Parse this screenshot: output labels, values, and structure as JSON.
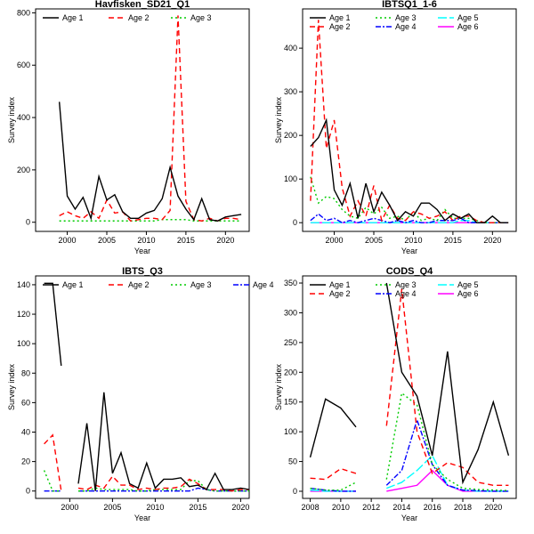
{
  "colors": {
    "Age 1": "#000000",
    "Age 2": "#ff0000",
    "Age 3": "#00cc00",
    "Age 4": "#0000ff",
    "Age 5": "#00ffff",
    "Age 6": "#ff00ff"
  },
  "chart_data": [
    {
      "type": "line",
      "title": "Havfisken_SD21_Q1",
      "xlabel": "Year",
      "ylabel": "Survey index",
      "xlim": [
        1996,
        2023
      ],
      "ylim": [
        -35,
        815
      ],
      "xticks": [
        2000,
        2005,
        2010,
        2015,
        2020
      ],
      "yticks": [
        0,
        200,
        400,
        600,
        800
      ],
      "legend_position": "top",
      "series": [
        {
          "name": "Age 1",
          "x": [
            1999,
            2000,
            2001,
            2002,
            2003,
            2004,
            2005,
            2006,
            2007,
            2008,
            2009,
            2010,
            2011,
            2012,
            2013,
            2014,
            2015,
            2016,
            2017,
            2018,
            2019,
            2020,
            2021,
            2022
          ],
          "y": [
            460,
            100,
            50,
            95,
            15,
            175,
            85,
            105,
            40,
            15,
            15,
            35,
            45,
            90,
            210,
            100,
            50,
            10,
            90,
            10,
            5,
            20,
            25,
            30
          ]
        },
        {
          "name": "Age 2",
          "x": [
            1999,
            2000,
            2001,
            2002,
            2003,
            2004,
            2005,
            2006,
            2007,
            2008,
            2009,
            2010,
            2011,
            2012,
            2013,
            2014,
            2015,
            2016,
            2017,
            2018,
            2019,
            2020,
            2021,
            2022
          ],
          "y": [
            25,
            40,
            25,
            15,
            40,
            15,
            85,
            35,
            40,
            5,
            10,
            15,
            15,
            10,
            45,
            790,
            80,
            10,
            5,
            15,
            5,
            15,
            15,
            10
          ]
        },
        {
          "name": "Age 3",
          "x": [
            1999,
            2000,
            2001,
            2002,
            2003,
            2004,
            2005,
            2006,
            2007,
            2008,
            2009,
            2010,
            2011,
            2012,
            2013,
            2014,
            2015,
            2016,
            2017,
            2018,
            2019,
            2020,
            2021,
            2022
          ],
          "y": [
            5,
            5,
            5,
            5,
            5,
            5,
            5,
            5,
            5,
            5,
            5,
            5,
            5,
            10,
            10,
            10,
            10,
            5,
            5,
            5,
            5,
            5,
            5,
            5
          ]
        }
      ]
    },
    {
      "type": "line",
      "title": "IBTSQ1_1-6",
      "xlabel": "Year",
      "ylabel": "Survey index",
      "xlim": [
        1996,
        2023
      ],
      "ylim": [
        -20,
        490
      ],
      "xticks": [
        2000,
        2005,
        2010,
        2015,
        2020
      ],
      "yticks": [
        0,
        100,
        200,
        300,
        400
      ],
      "legend_position": "top",
      "series": [
        {
          "name": "Age 1",
          "x": [
            1997,
            1998,
            1999,
            2000,
            2001,
            2002,
            2003,
            2004,
            2005,
            2006,
            2007,
            2008,
            2009,
            2010,
            2011,
            2012,
            2013,
            2014,
            2015,
            2016,
            2017,
            2018,
            2019,
            2020,
            2021,
            2022
          ],
          "y": [
            175,
            195,
            235,
            75,
            40,
            90,
            10,
            90,
            25,
            70,
            40,
            5,
            25,
            15,
            45,
            45,
            30,
            5,
            20,
            10,
            20,
            0,
            0,
            15,
            0,
            0
          ]
        },
        {
          "name": "Age 2",
          "x": [
            1997,
            1998,
            1999,
            2000,
            2001,
            2002,
            2003,
            2004,
            2005,
            2006,
            2007,
            2008,
            2009,
            2010,
            2011,
            2012,
            2013,
            2014,
            2015,
            2016,
            2017,
            2018,
            2019,
            2020,
            2021,
            2022
          ],
          "y": [
            50,
            465,
            170,
            235,
            80,
            15,
            50,
            15,
            85,
            5,
            40,
            10,
            5,
            25,
            20,
            10,
            15,
            25,
            5,
            15,
            15,
            5,
            0,
            0,
            0,
            0
          ]
        },
        {
          "name": "Age 3",
          "x": [
            1997,
            1998,
            1999,
            2000,
            2001,
            2002,
            2003,
            2004,
            2005,
            2006,
            2007,
            2008,
            2009,
            2010,
            2011,
            2012,
            2013,
            2014,
            2015,
            2016,
            2017,
            2018,
            2019,
            2020,
            2021,
            2022
          ],
          "y": [
            105,
            45,
            60,
            55,
            30,
            15,
            10,
            35,
            20,
            35,
            10,
            15,
            5,
            25,
            5,
            10,
            5,
            30,
            10,
            10,
            10,
            5,
            0,
            0,
            0,
            0
          ]
        },
        {
          "name": "Age 4",
          "x": [
            1997,
            1998,
            1999,
            2000,
            2001,
            2002,
            2003,
            2004,
            2005,
            2006,
            2007,
            2008,
            2009,
            2010,
            2011,
            2012,
            2013,
            2014,
            2015,
            2016,
            2017,
            2018,
            2019,
            2020,
            2021,
            2022
          ],
          "y": [
            5,
            20,
            5,
            10,
            0,
            5,
            0,
            5,
            10,
            5,
            0,
            5,
            0,
            5,
            0,
            0,
            5,
            5,
            5,
            10,
            0,
            0,
            0,
            0,
            0,
            0
          ]
        },
        {
          "name": "Age 5",
          "x": [
            1997,
            1998,
            1999,
            2000,
            2001,
            2002,
            2003,
            2004,
            2005,
            2006,
            2007,
            2008,
            2009,
            2010,
            2011,
            2012,
            2013,
            2014,
            2015,
            2016,
            2017,
            2018,
            2019,
            2020,
            2021,
            2022
          ],
          "y": [
            0,
            0,
            0,
            0,
            0,
            0,
            0,
            0,
            0,
            0,
            0,
            0,
            0,
            0,
            0,
            0,
            0,
            0,
            0,
            5,
            5,
            0,
            0,
            0,
            0,
            0
          ]
        },
        {
          "name": "Age 6",
          "x": [
            1997,
            1998,
            1999,
            2000,
            2001,
            2002,
            2003,
            2004,
            2005,
            2006,
            2007,
            2008,
            2009,
            2010,
            2011,
            2012,
            2013,
            2014,
            2015,
            2016,
            2017,
            2018,
            2019,
            2020,
            2021,
            2022
          ],
          "y": [
            0,
            0,
            0,
            0,
            0,
            0,
            0,
            0,
            0,
            0,
            0,
            0,
            0,
            0,
            0,
            0,
            0,
            0,
            0,
            0,
            0,
            0,
            0,
            0,
            0,
            0
          ]
        }
      ]
    },
    {
      "type": "line",
      "title": "IBTS_Q3",
      "xlabel": "Year",
      "ylabel": "Survey index",
      "xlim": [
        1996,
        2021
      ],
      "ylim": [
        -5,
        146
      ],
      "xticks": [
        2000,
        2005,
        2010,
        2015,
        2020
      ],
      "yticks": [
        0,
        20,
        40,
        60,
        80,
        100,
        120,
        140
      ],
      "legend_position": "top",
      "series": [
        {
          "name": "Age 1",
          "x": [
            1997,
            1998,
            1999,
            2000,
            2001,
            2002,
            2003,
            2004,
            2005,
            2006,
            2007,
            2008,
            2009,
            2010,
            2011,
            2012,
            2013,
            2014,
            2015,
            2016,
            2017,
            2018,
            2019,
            2020,
            2021
          ],
          "y": [
            141,
            141,
            85,
            null,
            5,
            46,
            0,
            67,
            12,
            26,
            5,
            2,
            19,
            2,
            8,
            8,
            9,
            3,
            4,
            1,
            12,
            1,
            1,
            2,
            1
          ]
        },
        {
          "name": "Age 2",
          "x": [
            1997,
            1998,
            1999,
            2000,
            2001,
            2002,
            2003,
            2004,
            2005,
            2006,
            2007,
            2008,
            2009,
            2010,
            2011,
            2012,
            2013,
            2014,
            2015,
            2016,
            2017,
            2018,
            2019,
            2020,
            2021
          ],
          "y": [
            32,
            38,
            0,
            null,
            2,
            1,
            4,
            2,
            10,
            4,
            4,
            1,
            2,
            1,
            2,
            2,
            3,
            8,
            5,
            1,
            1,
            1,
            0,
            1,
            1
          ]
        },
        {
          "name": "Age 3",
          "x": [
            1997,
            1998,
            1999,
            2000,
            2001,
            2002,
            2003,
            2004,
            2005,
            2006,
            2007,
            2008,
            2009,
            2010,
            2011,
            2012,
            2013,
            2014,
            2015,
            2016,
            2017,
            2018,
            2019,
            2020,
            2021
          ],
          "y": [
            14,
            0,
            0,
            null,
            0,
            0,
            2,
            1,
            1,
            1,
            1,
            0,
            0,
            1,
            1,
            1,
            1,
            7,
            7,
            1,
            0,
            0,
            0,
            0,
            0
          ]
        },
        {
          "name": "Age 4",
          "x": [
            1997,
            1998,
            1999,
            2000,
            2001,
            2002,
            2003,
            2004,
            2005,
            2006,
            2007,
            2008,
            2009,
            2010,
            2011,
            2012,
            2013,
            2014,
            2015,
            2016,
            2017,
            2018,
            2019,
            2020,
            2021
          ],
          "y": [
            0,
            0,
            0,
            null,
            0,
            0,
            0,
            0,
            0,
            0,
            0,
            0,
            0,
            0,
            0,
            0,
            0,
            0,
            2,
            1,
            0,
            0,
            0,
            0,
            0
          ]
        }
      ]
    },
    {
      "type": "line",
      "title": "CODS_Q4",
      "xlabel": "Year",
      "ylabel": "Survey index",
      "xlim": [
        2007.5,
        2021.5
      ],
      "ylim": [
        -12,
        362
      ],
      "xticks": [
        2008,
        2010,
        2012,
        2014,
        2016,
        2018,
        2020
      ],
      "yticks": [
        0,
        50,
        100,
        150,
        200,
        250,
        300,
        350
      ],
      "legend_position": "top",
      "series": [
        {
          "name": "Age 1",
          "x": [
            2008,
            2009,
            2010,
            2011,
            2012,
            2013,
            2014,
            2015,
            2016,
            2017,
            2018,
            2019,
            2020,
            2021
          ],
          "y": [
            57,
            155,
            140,
            108,
            null,
            350,
            200,
            160,
            60,
            235,
            15,
            70,
            150,
            60
          ]
        },
        {
          "name": "Age 2",
          "x": [
            2008,
            2009,
            2010,
            2011,
            2012,
            2013,
            2014,
            2015,
            2016,
            2017,
            2018,
            2019,
            2020,
            2021
          ],
          "y": [
            22,
            20,
            38,
            30,
            null,
            110,
            340,
            100,
            30,
            48,
            40,
            15,
            10,
            10
          ]
        },
        {
          "name": "Age 3",
          "x": [
            2008,
            2009,
            2010,
            2011,
            2012,
            2013,
            2014,
            2015,
            2016,
            2017,
            2018,
            2019,
            2020,
            2021
          ],
          "y": [
            5,
            2,
            2,
            15,
            null,
            20,
            165,
            145,
            45,
            20,
            5,
            3,
            2,
            1
          ]
        },
        {
          "name": "Age 4",
          "x": [
            2008,
            2009,
            2010,
            2011,
            2012,
            2013,
            2014,
            2015,
            2016,
            2017,
            2018,
            2019,
            2020,
            2021
          ],
          "y": [
            5,
            2,
            0,
            0,
            null,
            10,
            35,
            120,
            45,
            10,
            2,
            1,
            0,
            0
          ]
        },
        {
          "name": "Age 5",
          "x": [
            2008,
            2009,
            2010,
            2011,
            2012,
            2013,
            2014,
            2015,
            2016,
            2017,
            2018,
            2019,
            2020,
            2021
          ],
          "y": [
            2,
            0,
            0,
            0,
            null,
            5,
            15,
            35,
            60,
            10,
            2,
            0,
            0,
            0
          ]
        },
        {
          "name": "Age 6",
          "x": [
            2008,
            2009,
            2010,
            2011,
            2012,
            2013,
            2014,
            2015,
            2016,
            2017,
            2018,
            2019,
            2020,
            2021
          ],
          "y": [
            0,
            0,
            0,
            0,
            null,
            0,
            5,
            10,
            35,
            10,
            0,
            0,
            0,
            0
          ]
        }
      ]
    }
  ]
}
